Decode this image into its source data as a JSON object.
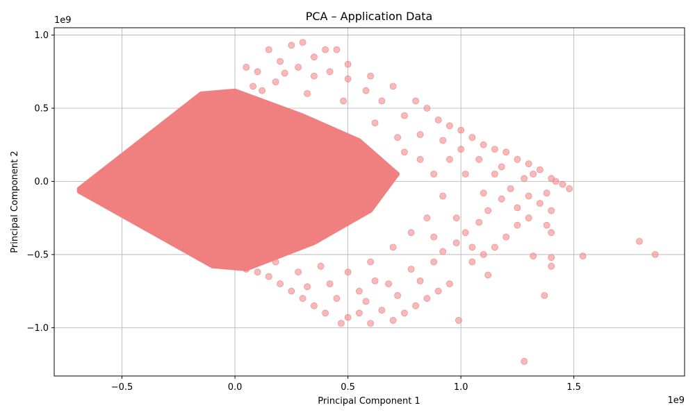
{
  "chart_data": {
    "type": "scatter",
    "title": "PCA – Application Data",
    "xlabel": "Principal Component 1",
    "ylabel": "Principal Component 2",
    "x_scale_label": "1e9",
    "y_scale_label": "1e9",
    "xlim": [
      -0.8,
      1.99
    ],
    "ylim": [
      -1.33,
      1.05
    ],
    "x_ticks": [
      {
        "value": -0.5,
        "label": "−0.5"
      },
      {
        "value": 0.0,
        "label": "0.0"
      },
      {
        "value": 0.5,
        "label": "0.5"
      },
      {
        "value": 1.0,
        "label": "1.0"
      },
      {
        "value": 1.5,
        "label": "1.5"
      }
    ],
    "y_ticks": [
      {
        "value": -1.0,
        "label": "−1.0"
      },
      {
        "value": -0.5,
        "label": "−0.5"
      },
      {
        "value": 0.0,
        "label": "0.0"
      },
      {
        "value": 0.5,
        "label": "0.5"
      },
      {
        "value": 1.0,
        "label": "1.0"
      }
    ],
    "grid": true,
    "legend": "none",
    "marker_color": "#f08080",
    "marker_alpha": 0.55,
    "dense_region_polygon": [
      [
        -0.69,
        -0.05
      ],
      [
        -0.15,
        0.6
      ],
      [
        0.0,
        0.62
      ],
      [
        0.3,
        0.45
      ],
      [
        0.55,
        0.28
      ],
      [
        0.72,
        0.05
      ],
      [
        0.6,
        -0.2
      ],
      [
        0.35,
        -0.42
      ],
      [
        0.05,
        -0.6
      ],
      [
        -0.1,
        -0.58
      ],
      [
        -0.69,
        -0.07
      ]
    ],
    "points": [
      [
        0.25,
        0.93
      ],
      [
        0.3,
        0.95
      ],
      [
        0.35,
        0.85
      ],
      [
        0.4,
        0.9
      ],
      [
        0.45,
        0.9
      ],
      [
        0.15,
        0.9
      ],
      [
        0.2,
        0.82
      ],
      [
        0.1,
        0.75
      ],
      [
        0.05,
        0.78
      ],
      [
        0.5,
        0.8
      ],
      [
        0.6,
        0.72
      ],
      [
        0.7,
        0.65
      ],
      [
        0.8,
        0.55
      ],
      [
        0.85,
        0.5
      ],
      [
        0.9,
        0.42
      ],
      [
        0.95,
        0.38
      ],
      [
        1.0,
        0.35
      ],
      [
        1.05,
        0.3
      ],
      [
        1.1,
        0.25
      ],
      [
        1.15,
        0.22
      ],
      [
        1.2,
        0.2
      ],
      [
        1.25,
        0.15
      ],
      [
        1.3,
        0.12
      ],
      [
        1.35,
        0.08
      ],
      [
        1.4,
        0.02
      ],
      [
        1.42,
        0.0
      ],
      [
        1.45,
        -0.02
      ],
      [
        1.48,
        -0.05
      ],
      [
        1.38,
        -0.08
      ],
      [
        1.35,
        -0.15
      ],
      [
        1.4,
        -0.2
      ],
      [
        1.3,
        -0.25
      ],
      [
        1.25,
        -0.3
      ],
      [
        1.38,
        -0.3
      ],
      [
        1.4,
        -0.35
      ],
      [
        1.2,
        -0.38
      ],
      [
        1.15,
        -0.45
      ],
      [
        1.1,
        -0.5
      ],
      [
        1.12,
        -0.64
      ],
      [
        1.05,
        -0.55
      ],
      [
        1.32,
        -0.51
      ],
      [
        1.4,
        -0.52
      ],
      [
        1.4,
        -0.58
      ],
      [
        1.37,
        -0.78
      ],
      [
        1.54,
        -0.51
      ],
      [
        1.79,
        -0.41
      ],
      [
        1.86,
        -0.5
      ],
      [
        1.28,
        -1.23
      ],
      [
        0.99,
        -0.95
      ],
      [
        0.95,
        -0.7
      ],
      [
        0.9,
        -0.75
      ],
      [
        0.85,
        -0.8
      ],
      [
        0.8,
        -0.85
      ],
      [
        0.75,
        -0.9
      ],
      [
        0.7,
        -0.95
      ],
      [
        0.65,
        -0.88
      ],
      [
        0.6,
        -0.97
      ],
      [
        0.55,
        -0.9
      ],
      [
        0.5,
        -0.93
      ],
      [
        0.47,
        -0.97
      ],
      [
        0.4,
        -0.9
      ],
      [
        0.35,
        -0.85
      ],
      [
        0.3,
        -0.8
      ],
      [
        0.25,
        -0.75
      ],
      [
        0.2,
        -0.7
      ],
      [
        0.15,
        -0.65
      ],
      [
        0.1,
        -0.62
      ],
      [
        0.05,
        -0.6
      ],
      [
        0.0,
        -0.55
      ],
      [
        0.42,
        -0.7
      ],
      [
        0.55,
        -0.75
      ],
      [
        0.68,
        -0.7
      ],
      [
        0.78,
        -0.6
      ],
      [
        0.88,
        -0.55
      ],
      [
        0.92,
        -0.48
      ],
      [
        0.98,
        -0.42
      ],
      [
        1.02,
        -0.35
      ],
      [
        1.08,
        -0.28
      ],
      [
        1.12,
        -0.2
      ],
      [
        1.18,
        -0.12
      ],
      [
        1.22,
        -0.05
      ],
      [
        1.28,
        0.02
      ],
      [
        1.32,
        0.05
      ],
      [
        1.18,
        0.1
      ],
      [
        1.08,
        0.15
      ],
      [
        1.0,
        0.22
      ],
      [
        0.92,
        0.28
      ],
      [
        0.82,
        0.32
      ],
      [
        0.75,
        0.45
      ],
      [
        0.65,
        0.55
      ],
      [
        0.58,
        0.62
      ],
      [
        0.5,
        0.7
      ],
      [
        0.42,
        0.75
      ],
      [
        0.35,
        0.72
      ],
      [
        0.28,
        0.78
      ],
      [
        0.22,
        0.74
      ],
      [
        0.18,
        0.68
      ],
      [
        0.12,
        0.62
      ],
      [
        0.08,
        0.65
      ],
      [
        0.32,
        0.6
      ],
      [
        0.48,
        0.55
      ],
      [
        0.62,
        0.4
      ],
      [
        0.72,
        0.3
      ],
      [
        0.82,
        0.15
      ],
      [
        0.88,
        0.05
      ],
      [
        0.92,
        -0.1
      ],
      [
        0.85,
        -0.25
      ],
      [
        0.78,
        -0.35
      ],
      [
        0.7,
        -0.45
      ],
      [
        0.6,
        -0.55
      ],
      [
        0.5,
        -0.62
      ],
      [
        0.38,
        -0.58
      ],
      [
        0.28,
        -0.62
      ],
      [
        0.18,
        -0.55
      ],
      [
        0.62,
        -0.68
      ],
      [
        0.72,
        -0.78
      ],
      [
        0.82,
        -0.68
      ],
      [
        0.58,
        -0.82
      ],
      [
        0.45,
        -0.8
      ],
      [
        0.32,
        -0.72
      ],
      [
        1.02,
        0.05
      ],
      [
        1.1,
        -0.08
      ],
      [
        1.15,
        0.05
      ],
      [
        1.25,
        -0.18
      ],
      [
        1.3,
        -0.1
      ],
      [
        0.95,
        0.15
      ],
      [
        0.98,
        -0.25
      ],
      [
        1.05,
        -0.45
      ],
      [
        0.88,
        -0.38
      ],
      [
        0.75,
        0.2
      ]
    ]
  }
}
